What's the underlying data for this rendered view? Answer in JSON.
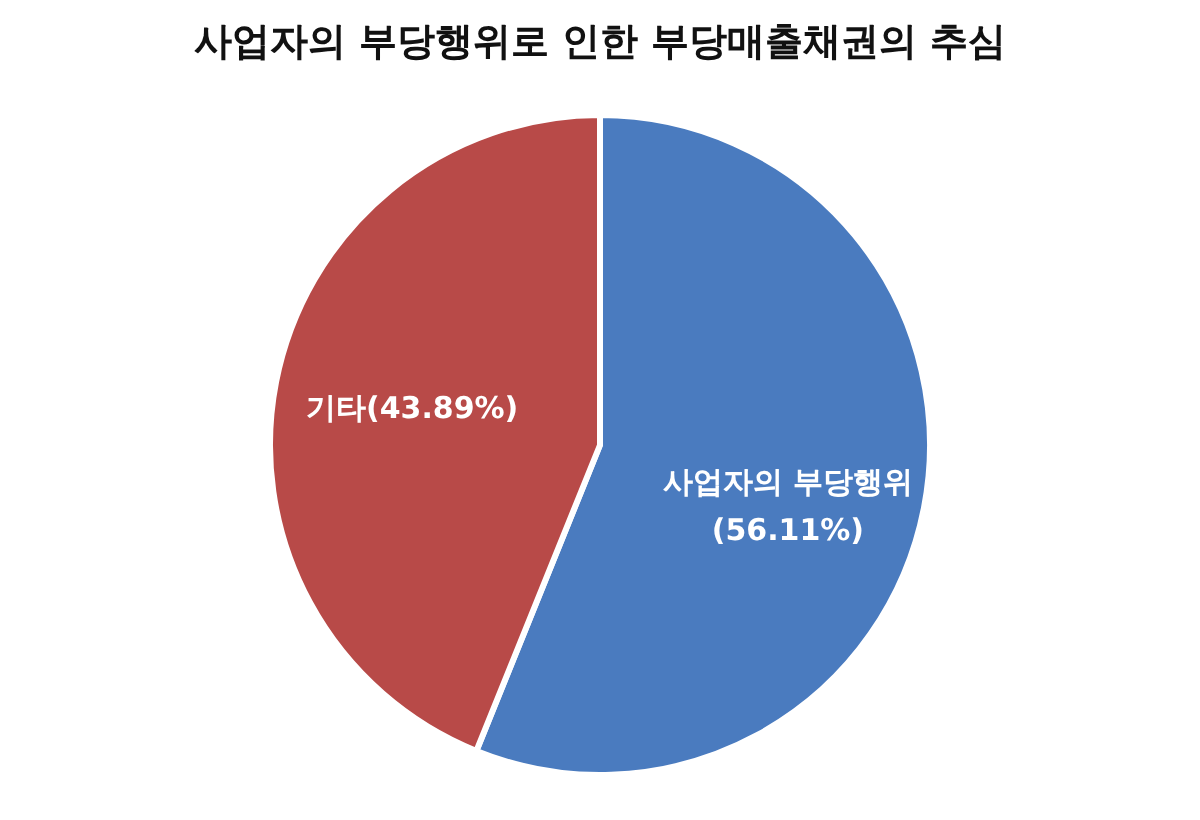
{
  "chart_data": {
    "type": "pie",
    "title": "사업자의 부당행위로 인한 부당매출채권의 추심",
    "categories": [
      "사업자의 부당행위",
      "기타"
    ],
    "values": [
      56.11,
      43.89
    ],
    "colors": [
      "#4a7bbf",
      "#b84a48"
    ],
    "value_labels": [
      "(56.11%)",
      "(43.89%)"
    ]
  }
}
